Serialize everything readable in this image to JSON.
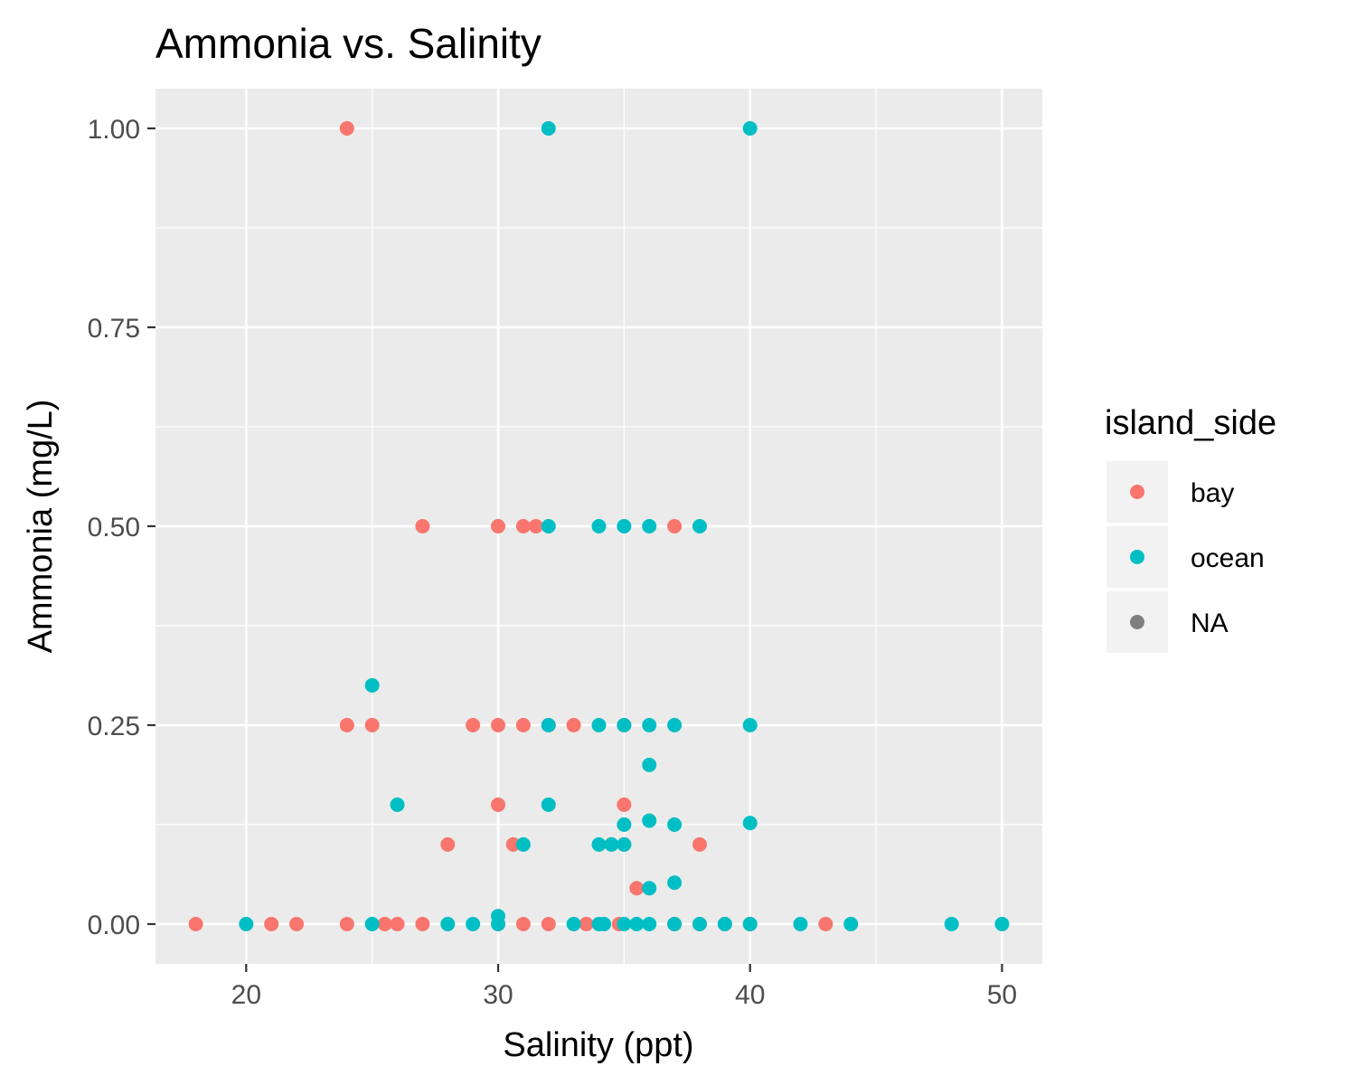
{
  "chart_data": {
    "type": "scatter",
    "title": "Ammonia vs. Salinity",
    "xlabel": "Salinity (ppt)",
    "ylabel": "Ammonia (mg/L)",
    "xlim": [
      16.4,
      51.6
    ],
    "ylim": [
      -0.05,
      1.05
    ],
    "x_ticks": [
      20,
      30,
      40,
      50
    ],
    "x_tick_labels": [
      "20",
      "30",
      "40",
      "50"
    ],
    "y_ticks": [
      0,
      0.25,
      0.5,
      0.75,
      1.0
    ],
    "y_tick_labels": [
      "0.00",
      "0.25",
      "0.50",
      "0.75",
      "1.00"
    ],
    "grid": true,
    "legend": {
      "title": "island_side",
      "placement": "right",
      "entries": [
        {
          "label": "bay",
          "color": "#F8766D"
        },
        {
          "label": "ocean",
          "color": "#00BFC4"
        },
        {
          "label": "NA",
          "color": "#7F7F7F"
        }
      ]
    },
    "series": [
      {
        "name": "bay",
        "color": "#F8766D",
        "points": [
          [
            24,
            1.0
          ],
          [
            27,
            0.5
          ],
          [
            30,
            0.5
          ],
          [
            31,
            0.5
          ],
          [
            31.5,
            0.5
          ],
          [
            37,
            0.5
          ],
          [
            24,
            0.25
          ],
          [
            25,
            0.25
          ],
          [
            29,
            0.25
          ],
          [
            30,
            0.25
          ],
          [
            31,
            0.25
          ],
          [
            32,
            0.25
          ],
          [
            33,
            0.25
          ],
          [
            35,
            0.25
          ],
          [
            30,
            0.15
          ],
          [
            35,
            0.15
          ],
          [
            28,
            0.1
          ],
          [
            30.6,
            0.1
          ],
          [
            35,
            0.1
          ],
          [
            38,
            0.1
          ],
          [
            35.5,
            0.045
          ],
          [
            18,
            0.0
          ],
          [
            21,
            0.0
          ],
          [
            22,
            0.0
          ],
          [
            24,
            0.0
          ],
          [
            25.5,
            0.0
          ],
          [
            26,
            0.0
          ],
          [
            27,
            0.0
          ],
          [
            30,
            0.0
          ],
          [
            31,
            0.0
          ],
          [
            32,
            0.0
          ],
          [
            33.5,
            0.0
          ],
          [
            34.8,
            0.0
          ],
          [
            37,
            0.0
          ],
          [
            38,
            0.0
          ],
          [
            39,
            0.0
          ],
          [
            40,
            0.0
          ],
          [
            43,
            0.0
          ]
        ]
      },
      {
        "name": "ocean",
        "color": "#00BFC4",
        "points": [
          [
            32,
            1.0
          ],
          [
            40,
            1.0
          ],
          [
            32,
            0.5
          ],
          [
            34,
            0.5
          ],
          [
            35,
            0.5
          ],
          [
            36,
            0.5
          ],
          [
            38,
            0.5
          ],
          [
            25,
            0.3
          ],
          [
            32,
            0.25
          ],
          [
            34,
            0.25
          ],
          [
            35,
            0.25
          ],
          [
            36,
            0.25
          ],
          [
            37,
            0.25
          ],
          [
            40,
            0.25
          ],
          [
            36,
            0.2
          ],
          [
            26,
            0.15
          ],
          [
            32,
            0.15
          ],
          [
            35,
            0.125
          ],
          [
            36,
            0.13
          ],
          [
            37,
            0.125
          ],
          [
            40,
            0.127
          ],
          [
            31,
            0.1
          ],
          [
            34,
            0.1
          ],
          [
            34.5,
            0.1
          ],
          [
            35,
            0.1
          ],
          [
            37,
            0.052
          ],
          [
            36,
            0.045
          ],
          [
            20,
            0.0
          ],
          [
            25,
            0.0
          ],
          [
            28,
            0.0
          ],
          [
            29,
            0.0
          ],
          [
            30,
            0.01
          ],
          [
            30,
            0.0
          ],
          [
            33,
            0.0
          ],
          [
            34,
            0.0
          ],
          [
            34.2,
            0.0
          ],
          [
            35,
            0.0
          ],
          [
            35.5,
            0.0
          ],
          [
            36,
            0.0
          ],
          [
            37,
            0.0
          ],
          [
            38,
            0.0
          ],
          [
            39,
            0.0
          ],
          [
            40,
            0.0
          ],
          [
            42,
            0.0
          ],
          [
            44,
            0.0
          ],
          [
            48,
            0.0
          ],
          [
            50,
            0.0
          ]
        ]
      }
    ]
  }
}
